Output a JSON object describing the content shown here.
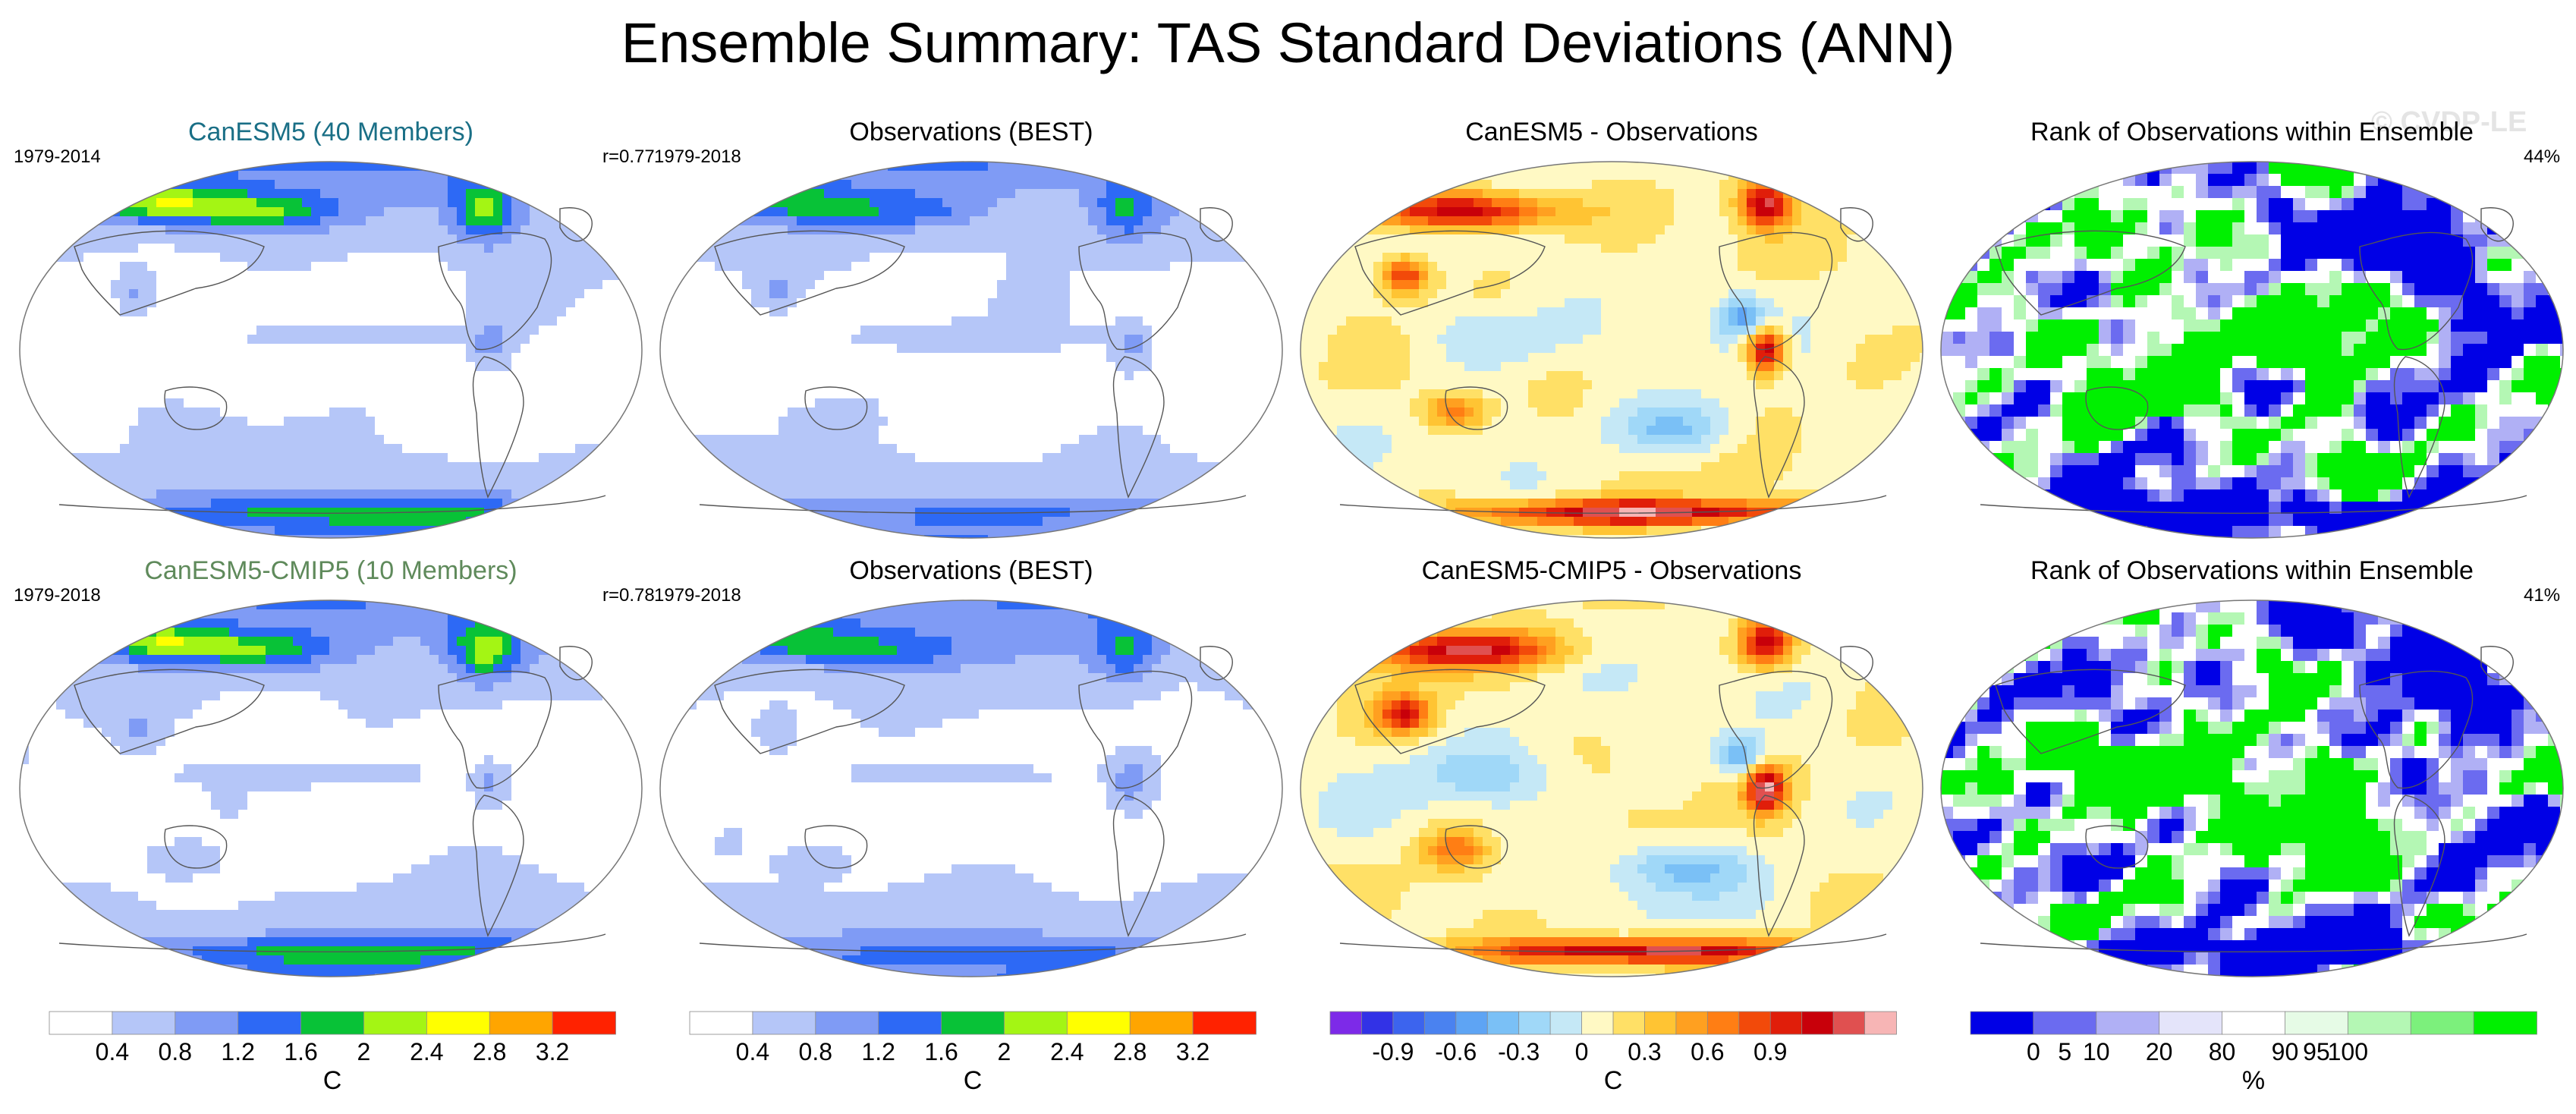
{
  "title": "Ensemble Summary: TAS Standard Deviations (ANN)",
  "watermark": "© CVDP-LE",
  "chart_data": [
    {
      "type": "heatmap",
      "title": "CanESM5 (40 Members)",
      "title_color": "#1a6f86",
      "period": "1979-2014",
      "stat": "r=0.77",
      "variable": "TAS standard deviation",
      "units": "C",
      "palette": "sd"
    },
    {
      "type": "heatmap",
      "title": "Observations (BEST)",
      "title_color": "#000000",
      "period": "1979-2018",
      "stat": "",
      "variable": "TAS standard deviation",
      "units": "C",
      "palette": "sd"
    },
    {
      "type": "heatmap",
      "title": "CanESM5 - Observations",
      "title_color": "#000000",
      "period": "",
      "stat": "",
      "variable": "TAS standard deviation difference",
      "units": "C",
      "palette": "diff"
    },
    {
      "type": "heatmap",
      "title": "Rank of Observations within Ensemble",
      "title_color": "#000000",
      "period": "",
      "stat": "44%",
      "variable": "Rank of observations",
      "units": "%",
      "palette": "rank"
    },
    {
      "type": "heatmap",
      "title": "CanESM5-CMIP5 (10 Members)",
      "title_color": "#5f8a5b",
      "period": "1979-2018",
      "stat": "r=0.78",
      "variable": "TAS standard deviation",
      "units": "C",
      "palette": "sd"
    },
    {
      "type": "heatmap",
      "title": "Observations (BEST)",
      "title_color": "#000000",
      "period": "1979-2018",
      "stat": "",
      "variable": "TAS standard deviation",
      "units": "C",
      "palette": "sd"
    },
    {
      "type": "heatmap",
      "title": "CanESM5-CMIP5 - Observations",
      "title_color": "#000000",
      "period": "",
      "stat": "",
      "variable": "TAS standard deviation difference",
      "units": "C",
      "palette": "diff"
    },
    {
      "type": "heatmap",
      "title": "Rank of Observations within Ensemble",
      "title_color": "#000000",
      "period": "",
      "stat": "41%",
      "variable": "Rank of observations",
      "units": "%",
      "palette": "rank"
    }
  ],
  "colorbars": [
    {
      "label": "C",
      "colors": [
        "#ffffff",
        "#b5c6f8",
        "#7f9bf5",
        "#2d69f5",
        "#08c237",
        "#a4f514",
        "#ffff00",
        "#ffa500",
        "#ff2200"
      ],
      "bounds": [
        0,
        0.4,
        0.8,
        1.2,
        1.6,
        2,
        2.4,
        2.8,
        3.2,
        3.6
      ],
      "ticks": [
        "0.4",
        "0.8",
        "1.2",
        "1.6",
        "2",
        "2.4",
        "2.8",
        "3.2"
      ]
    },
    {
      "label": "C",
      "colors": [
        "#ffffff",
        "#b5c6f8",
        "#7f9bf5",
        "#2d69f5",
        "#08c237",
        "#a4f514",
        "#ffff00",
        "#ffa500",
        "#ff2200"
      ],
      "bounds": [
        0,
        0.4,
        0.8,
        1.2,
        1.6,
        2,
        2.4,
        2.8,
        3.2,
        3.6
      ],
      "ticks": [
        "0.4",
        "0.8",
        "1.2",
        "1.6",
        "2",
        "2.4",
        "2.8",
        "3.2"
      ]
    },
    {
      "label": "C",
      "colors": [
        "#7d2ae8",
        "#3232e6",
        "#3c64ee",
        "#4a82f0",
        "#5ea4f4",
        "#7ac0f6",
        "#a0d8f8",
        "#c5e8f6",
        "#fff9c4",
        "#ffe066",
        "#ffc433",
        "#ffa020",
        "#ff7e14",
        "#f24a0a",
        "#e01e0a",
        "#c8000a",
        "#e05050",
        "#f7b5b5"
      ],
      "bounds": [
        -1.2,
        -1.05,
        -0.9,
        -0.75,
        -0.6,
        -0.45,
        -0.3,
        -0.15,
        0,
        0.15,
        0.3,
        0.45,
        0.6,
        0.75,
        0.9,
        1.05,
        1.2,
        1.35,
        1.5
      ],
      "ticks": [
        "-0.9",
        "-0.6",
        "-0.3",
        "0",
        "0.3",
        "0.6",
        "0.9"
      ],
      "tick_values": [
        -0.9,
        -0.6,
        -0.3,
        0,
        0.3,
        0.6,
        0.9
      ]
    },
    {
      "label": "%",
      "colors": [
        "#0000e6",
        "#6b6bf0",
        "#b0b0f5",
        "#e4e4fa",
        "#ffffff",
        "#e6fbe6",
        "#b4f7b4",
        "#7cf07c",
        "#00f000"
      ],
      "ticks": [
        "0",
        "5",
        "10",
        "20",
        "80",
        "90",
        "95",
        "100"
      ],
      "tick_index": [
        1,
        1.5,
        2,
        3,
        4,
        5,
        5.5,
        6
      ]
    }
  ]
}
